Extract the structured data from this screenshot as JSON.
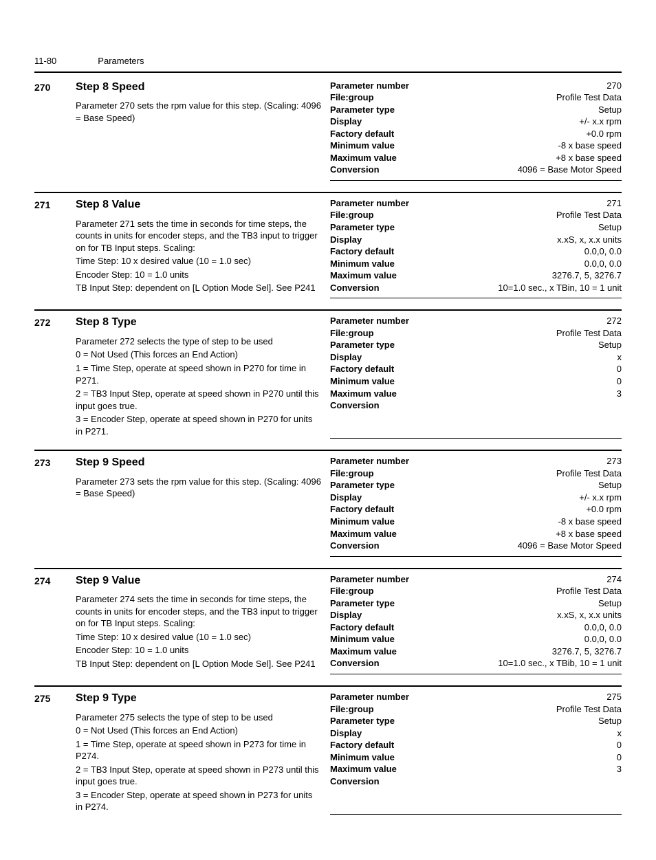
{
  "header": {
    "page_num": "11-80",
    "section": "Parameters"
  },
  "kv_labels": {
    "parameter_number": "Parameter number",
    "file_group": "File:group",
    "parameter_type": "Parameter type",
    "display": "Display",
    "factory_default": "Factory default",
    "minimum_value": "Minimum value",
    "maximum_value": "Maximum value",
    "conversion": "Conversion"
  },
  "params": [
    {
      "num": "270",
      "title": "Step 8 Speed",
      "desc": [
        "Parameter 270 sets the rpm value for this step. (Scaling: 4096 = Base Speed)"
      ],
      "kv": {
        "parameter_number": "270",
        "file_group": "Profile Test Data",
        "parameter_type": "Setup",
        "display": "+/- x.x rpm",
        "factory_default": "+0.0 rpm",
        "minimum_value": "-8 x base speed",
        "maximum_value": "+8 x base speed",
        "conversion": "4096 = Base Motor Speed"
      }
    },
    {
      "num": "271",
      "title": "Step 8 Value",
      "desc": [
        "Parameter 271 sets the time in seconds for time steps, the counts in units for encoder steps, and the TB3 input to trigger on for TB Input steps. Scaling:",
        "Time Step: 10 x desired value (10 = 1.0 sec)",
        "Encoder Step: 10 = 1.0 units",
        "TB Input Step: dependent on [L Option Mode Sel]. See P241"
      ],
      "kv": {
        "parameter_number": "271",
        "file_group": "Profile Test Data",
        "parameter_type": "Setup",
        "display": "x.xS, x, x.x units",
        "factory_default": "0.0,0, 0.0",
        "minimum_value": "0.0,0, 0.0",
        "maximum_value": "3276.7, 5, 3276.7",
        "conversion": "10=1.0 sec., x TBin, 10 = 1 unit"
      }
    },
    {
      "num": "272",
      "title": "Step 8 Type",
      "desc": [
        "Parameter 272 selects the type of step to be used",
        "0 = Not Used (This forces an End Action)",
        "1 = Time Step, operate at speed shown in P270 for time in P271.",
        "2 = TB3 Input Step, operate at speed shown in P270 until this input goes true.",
        "3 = Encoder Step, operate at speed shown in P270 for units in P271."
      ],
      "kv": {
        "parameter_number": "272",
        "file_group": "Profile Test Data",
        "parameter_type": "Setup",
        "display": "x",
        "factory_default": "0",
        "minimum_value": "0",
        "maximum_value": "3",
        "conversion": ""
      }
    },
    {
      "num": "273",
      "title": "Step 9 Speed",
      "desc": [
        "Parameter 273 sets the rpm value for this step. (Scaling: 4096 = Base Speed)"
      ],
      "kv": {
        "parameter_number": "273",
        "file_group": "Profile Test Data",
        "parameter_type": "Setup",
        "display": "+/- x.x rpm",
        "factory_default": "+0.0 rpm",
        "minimum_value": "-8 x base speed",
        "maximum_value": "+8 x base speed",
        "conversion": "4096 = Base Motor Speed"
      }
    },
    {
      "num": "274",
      "title": "Step 9 Value",
      "desc": [
        "Parameter 274 sets the time in seconds for time steps, the counts in units for encoder steps, and the TB3 input to trigger on for TB Input steps. Scaling:",
        "Time Step: 10 x desired value (10 = 1.0 sec)",
        "Encoder Step: 10 = 1.0 units",
        "TB Input Step: dependent on [L Option Mode Sel]. See P241"
      ],
      "kv": {
        "parameter_number": "274",
        "file_group": "Profile Test Data",
        "parameter_type": "Setup",
        "display": "x.xS, x, x.x units",
        "factory_default": "0.0,0, 0.0",
        "minimum_value": "0.0,0, 0.0",
        "maximum_value": "3276.7, 5, 3276.7",
        "conversion": "10=1.0 sec., x TBib, 10 = 1 unit"
      }
    },
    {
      "num": "275",
      "title": "Step 9 Type",
      "desc": [
        "Parameter 275 selects the type of step to be used",
        "0 = Not Used (This forces an End Action)",
        "1 = Time Step, operate at speed shown in P273 for time in P274.",
        "2 = TB3 Input Step, operate at speed shown in P273 until this input goes true.",
        "3 = Encoder Step, operate at speed shown in P273 for units in P274."
      ],
      "kv": {
        "parameter_number": "275",
        "file_group": "Profile Test Data",
        "parameter_type": "Setup",
        "display": "x",
        "factory_default": "0",
        "minimum_value": "0",
        "maximum_value": "3",
        "conversion": ""
      }
    }
  ]
}
